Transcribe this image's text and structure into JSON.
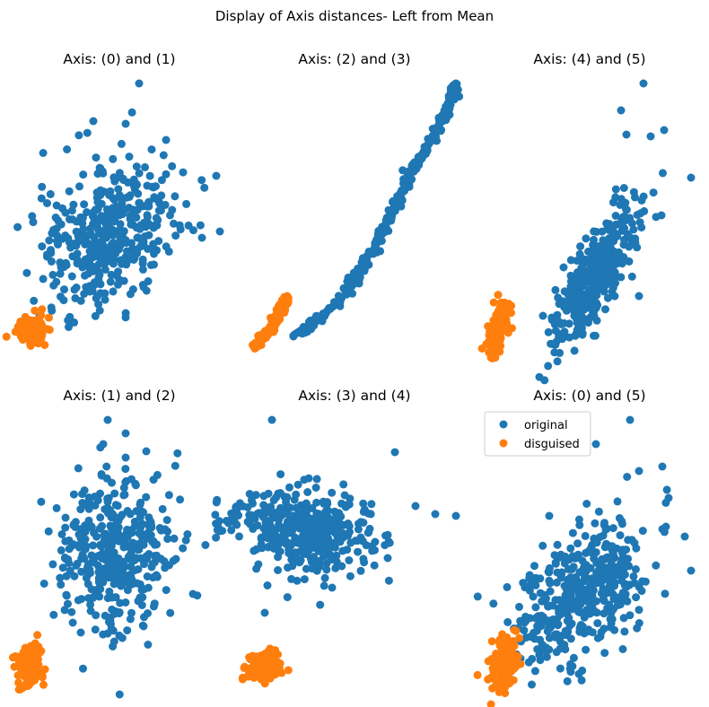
{
  "figure": {
    "suptitle": "Display of Axis distances- Left from Mean"
  },
  "colors": {
    "original": "#1f77b4",
    "disguised": "#ff7f0e",
    "legend_border": "#cccccc"
  },
  "legend": {
    "subplot_index": 5,
    "placement": "upper-left",
    "entries": [
      {
        "label": "original",
        "color": "#1f77b4"
      },
      {
        "label": "disguised",
        "color": "#ff7f0e"
      }
    ]
  },
  "chart_data": [
    {
      "type": "scatter",
      "title": "Axis: (0) and (1)",
      "axes_visible": false,
      "series": [
        {
          "name": "original",
          "color": "#1f77b4",
          "clusters": [
            {
              "kind": "blob",
              "cx": 120,
              "cy": 262,
              "sx": 38,
              "sy": 40,
              "rho": 0.25,
              "n": 400
            },
            {
              "kind": "points",
              "pts": [
                [
                  155,
                  93
                ],
                [
                  104,
                  135
                ],
                [
                  140,
                  138
                ],
                [
                  185,
                  156
                ],
                [
                  241,
                  196
                ],
                [
                  245,
                  258
                ],
                [
                  225,
                  265
                ],
                [
                  100,
                  325
                ],
                [
                  160,
                  320
                ],
                [
                  68,
                  297
                ]
              ]
            }
          ]
        },
        {
          "name": "disguised",
          "color": "#ff7f0e",
          "clusters": [
            {
              "kind": "blob",
              "cx": 35,
              "cy": 368,
              "sx": 8,
              "sy": 7,
              "rho": 0.1,
              "n": 140
            }
          ]
        }
      ]
    },
    {
      "type": "scatter",
      "title": "Axis: (2) and (3)",
      "axes_visible": false,
      "series": [
        {
          "name": "original",
          "color": "#1f77b4",
          "clusters": [
            {
              "kind": "curve",
              "pts": [
                [
                  327,
                  375
                ],
                [
                  340,
                  366
                ],
                [
                  360,
                  352
                ],
                [
                  380,
                  333
                ],
                [
                  400,
                  303
                ],
                [
                  420,
                  270
                ],
                [
                  440,
                  230
                ],
                [
                  460,
                  190
                ],
                [
                  480,
                  158
                ],
                [
                  500,
                  120
                ],
                [
                  508,
                  93
                ]
              ],
              "n": 320,
              "spread": 2.5
            }
          ]
        },
        {
          "name": "disguised",
          "color": "#ff7f0e",
          "clusters": [
            {
              "kind": "curve",
              "pts": [
                [
                  283,
                  387
                ],
                [
                  290,
                  380
                ],
                [
                  300,
                  368
                ],
                [
                  310,
                  352
                ],
                [
                  320,
                  330
                ]
              ],
              "n": 110,
              "spread": 2
            }
          ]
        }
      ]
    },
    {
      "type": "scatter",
      "title": "Axis: (4) and (5)",
      "axes_visible": false,
      "series": [
        {
          "name": "original",
          "color": "#1f77b4",
          "clusters": [
            {
              "kind": "blob",
              "cx": 665,
              "cy": 305,
              "sx": 22,
              "sy": 38,
              "rho": 0.75,
              "n": 380
            },
            {
              "kind": "points",
              "pts": [
                [
                  717,
                  93
                ],
                [
                  692,
                  123
                ],
                [
                  740,
                  145
                ],
                [
                  698,
                  150
                ],
                [
                  725,
                  152
                ],
                [
                  770,
                  198
                ],
                [
                  737,
                  240
                ],
                [
                  605,
                  352
                ],
                [
                  628,
                  298
                ],
                [
                  712,
                  330
                ]
              ]
            }
          ]
        },
        {
          "name": "disguised",
          "color": "#ff7f0e",
          "clusters": [
            {
              "kind": "blob",
              "cx": 556,
              "cy": 362,
              "sx": 6,
              "sy": 14,
              "rho": 0.55,
              "n": 130
            }
          ]
        }
      ]
    },
    {
      "type": "scatter",
      "title": "Axis: (1) and (2)",
      "axes_visible": false,
      "series": [
        {
          "name": "original",
          "color": "#1f77b4",
          "clusters": [
            {
              "kind": "blob",
              "cx": 127,
              "cy": 618,
              "sx": 28,
              "sy": 45,
              "rho": 0.15,
              "n": 400
            },
            {
              "kind": "points",
              "pts": [
                [
                  120,
                  468
                ],
                [
                  140,
                  483
                ],
                [
                  115,
                  495
                ],
                [
                  163,
                  503
                ],
                [
                  140,
                  510
                ],
                [
                  245,
                  592
                ],
                [
                  73,
                  577
                ],
                [
                  90,
                  705
                ],
                [
                  160,
                  698
                ],
                [
                  215,
                  662
                ]
              ]
            }
          ]
        },
        {
          "name": "disguised",
          "color": "#ff7f0e",
          "clusters": [
            {
              "kind": "blob",
              "cx": 33,
              "cy": 742,
              "sx": 7,
              "sy": 11,
              "rho": 0.2,
              "n": 140
            }
          ]
        }
      ]
    },
    {
      "type": "scatter",
      "title": "Axis: (3) and (4)",
      "axes_visible": false,
      "series": [
        {
          "name": "original",
          "color": "#1f77b4",
          "clusters": [
            {
              "kind": "blob",
              "cx": 340,
              "cy": 593,
              "sx": 40,
              "sy": 25,
              "rho": -0.15,
              "n": 400
            },
            {
              "kind": "points",
              "pts": [
                [
                  303,
                  468
                ],
                [
                  440,
                  504
                ],
                [
                  485,
                  573
                ],
                [
                  508,
                  575
                ],
                [
                  463,
                  564
                ],
                [
                  295,
                  683
                ],
                [
                  432,
                  622
                ],
                [
                  370,
                  655
                ]
              ]
            }
          ]
        },
        {
          "name": "disguised",
          "color": "#ff7f0e",
          "clusters": [
            {
              "kind": "blob",
              "cx": 293,
              "cy": 743,
              "sx": 10,
              "sy": 7,
              "rho": 0.1,
              "n": 140
            }
          ]
        }
      ]
    },
    {
      "type": "scatter",
      "title": "Axis: (0) and (5)",
      "axes_visible": false,
      "series": [
        {
          "name": "original",
          "color": "#1f77b4",
          "clusters": [
            {
              "kind": "blob",
              "cx": 648,
              "cy": 660,
              "sx": 35,
              "sy": 38,
              "rho": 0.45,
              "n": 420
            },
            {
              "kind": "points",
              "pts": [
                [
                  702,
                  468
                ],
                [
                  664,
                  495
                ],
                [
                  712,
                  525
                ],
                [
                  738,
                  520
                ],
                [
                  770,
                  636
                ],
                [
                  763,
                  598
                ],
                [
                  742,
                  587
                ],
                [
                  612,
                  575
                ],
                [
                  745,
                  555
                ]
              ]
            }
          ]
        },
        {
          "name": "disguised",
          "color": "#ff7f0e",
          "clusters": [
            {
              "kind": "blob",
              "cx": 562,
              "cy": 740,
              "sx": 8,
              "sy": 16,
              "rho": 0.4,
              "n": 150
            }
          ]
        }
      ]
    }
  ]
}
